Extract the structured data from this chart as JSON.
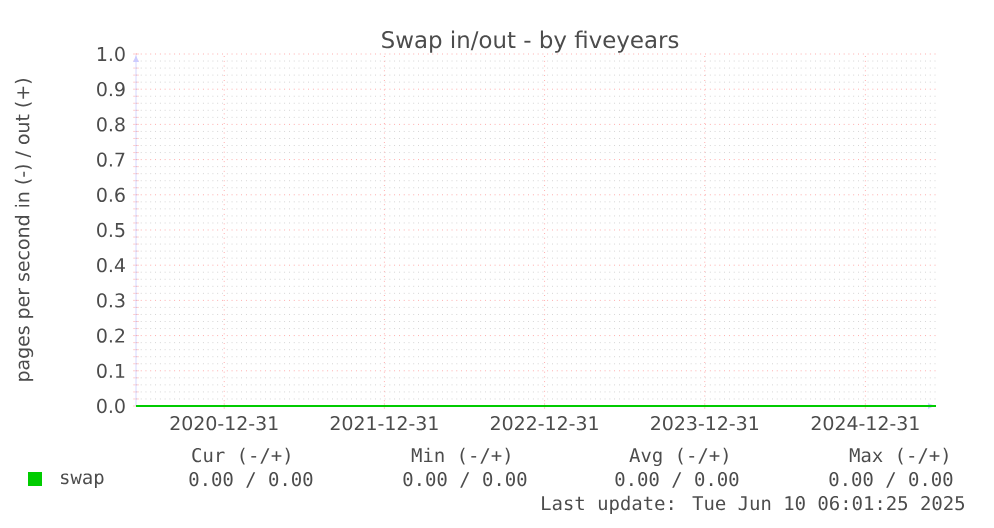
{
  "chart_data": {
    "type": "line",
    "title": "Swap in/out - by fiveyears",
    "ylabel": "pages per second in (-) / out (+)",
    "xlim": [
      "2020-06-13",
      "2025-06-10"
    ],
    "ylim": [
      0,
      1
    ],
    "xticks": [
      "2020-12-31",
      "2021-12-31",
      "2022-12-31",
      "2023-12-31",
      "2024-12-31"
    ],
    "yticks": [
      {
        "value": 0,
        "label": "0.0"
      },
      {
        "value": 0.1,
        "label": "0.1"
      },
      {
        "value": 0.2,
        "label": "0.2"
      },
      {
        "value": 0.3,
        "label": "0.3"
      },
      {
        "value": 0.4,
        "label": "0.4"
      },
      {
        "value": 0.5,
        "label": "0.5"
      },
      {
        "value": 0.6,
        "label": "0.6"
      },
      {
        "value": 0.7,
        "label": "0.7"
      },
      {
        "value": 0.8,
        "label": "0.8"
      },
      {
        "value": 0.9,
        "label": "0.9"
      },
      {
        "value": 1,
        "label": "1.0"
      }
    ],
    "grid": true,
    "legend": "bottom left",
    "marker": "none",
    "line_style": "solid",
    "series": [
      {
        "name": "swap",
        "color": "#00cc00",
        "x": [
          "2020-06-13",
          "2025-06-10"
        ],
        "values": [
          0,
          0
        ]
      }
    ],
    "annotations": [
      "Cur (-/+)",
      "Min (-/+)",
      "Avg (-/+)",
      "Max (-/+)",
      "0.00 /  0.00",
      "0.00 /  0.00",
      "0.00 /  0.00",
      "0.00 /  0.00",
      "Last update: Tue Jun 10 06:01:25 2025"
    ]
  }
}
